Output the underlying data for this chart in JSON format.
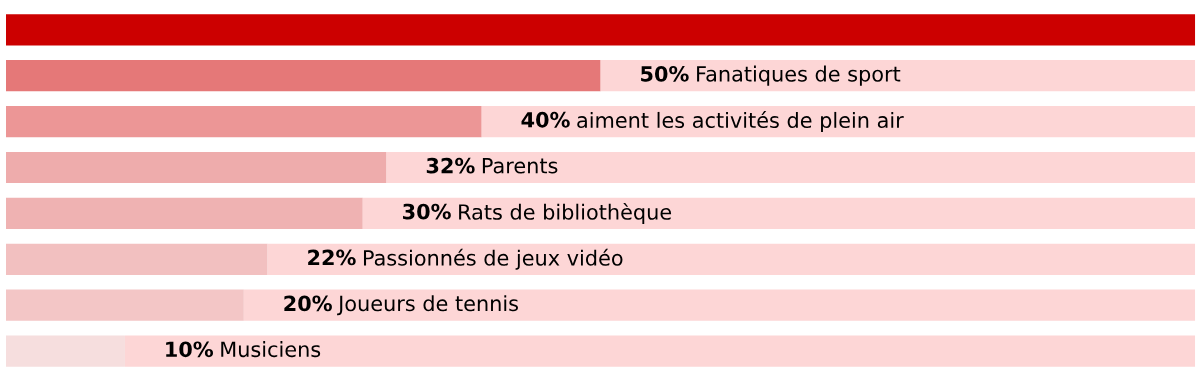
{
  "chart_data": {
    "type": "bar",
    "orientation": "horizontal",
    "stacked": true,
    "xlim": [
      0,
      100
    ],
    "categories": [
      null,
      "Fanatiques de sport",
      "aiment les activités de plein air",
      "Parents",
      "Rats de bibliothèque",
      "Passionnés de jeux vidéo",
      "Joueurs de tennis",
      "Musiciens"
    ],
    "series": [
      {
        "colors": [
          "#cc0000",
          "#e57878",
          "#ec9696",
          "#eeacac",
          "#efb2b2",
          "#f2c0c0",
          "#f3c6c6",
          "#f6dede"
        ],
        "values": [
          100,
          50,
          40,
          32,
          30,
          22,
          20,
          10
        ],
        "value_labels": [
          null,
          "50%",
          "40%",
          "32%",
          "30%",
          "22%",
          "20%",
          "10%"
        ]
      },
      {
        "color": "#fdd6d6",
        "values": [
          0,
          50,
          60,
          68,
          70,
          78,
          80,
          90
        ]
      }
    ]
  }
}
